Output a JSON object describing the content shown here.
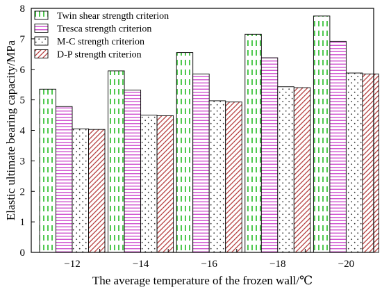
{
  "chart_data": {
    "type": "bar",
    "xlabel": "The average temperature of the frozen wall/℃",
    "ylabel": "Elastic ultimate bearing capacity/MPa",
    "ylim": [
      0,
      8
    ],
    "yticks": [
      "0",
      "1",
      "2",
      "3",
      "4",
      "5",
      "6",
      "7",
      "8"
    ],
    "categories": [
      "−12",
      "−14",
      "−16",
      "−18",
      "−20"
    ],
    "legend_position": "top-left",
    "grid": false,
    "series": [
      {
        "name": "Twin shear strength criterion",
        "values": [
          5.35,
          5.95,
          6.55,
          7.15,
          7.75
        ],
        "color": "#22bb22",
        "pattern": "vertical-dashes"
      },
      {
        "name": "Tresca strength criterion",
        "values": [
          4.78,
          5.32,
          5.85,
          6.38,
          6.92
        ],
        "color": "#cc44cc",
        "pattern": "horizontal-lines"
      },
      {
        "name": "M-C strength criterion",
        "values": [
          4.05,
          4.5,
          4.97,
          5.43,
          5.88
        ],
        "color": "#333333",
        "pattern": "dots"
      },
      {
        "name": "D-P strength criterion",
        "values": [
          4.03,
          4.48,
          4.93,
          5.4,
          5.85
        ],
        "color": "#b03030",
        "pattern": "diagonal-lines"
      }
    ]
  }
}
